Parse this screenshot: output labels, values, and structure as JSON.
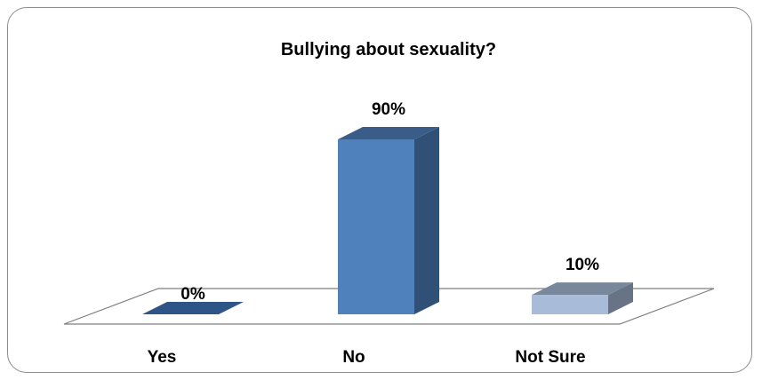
{
  "chart_data": {
    "type": "bar",
    "title": "Bullying about sexuality?",
    "categories": [
      "Yes",
      "No",
      "Not Sure"
    ],
    "values": [
      0,
      90,
      10
    ],
    "value_labels": [
      "0%",
      "90%",
      "10%"
    ],
    "unit": "%",
    "ylim": [
      0,
      100
    ],
    "three_d": true,
    "grid": false,
    "legend": "none",
    "colors": {
      "Yes": "#2f5488",
      "No": "#4f81bd",
      "Not Sure": "#a8bbd8",
      "floor_edge": "#7f7f7f"
    }
  }
}
